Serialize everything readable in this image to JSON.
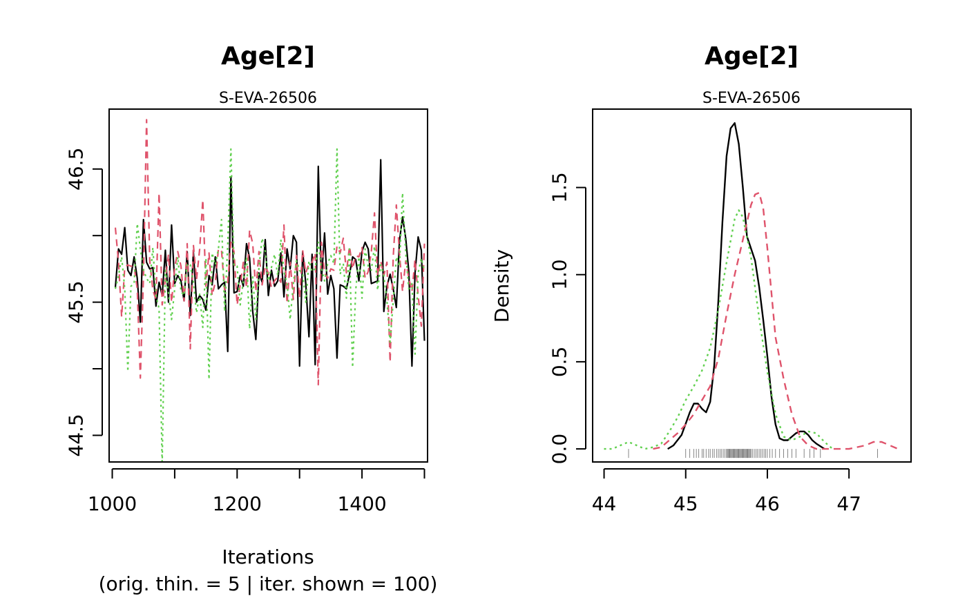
{
  "colors": {
    "chain1": "#000000",
    "chain2": "#DF536B",
    "chain3": "#61D04F",
    "frame": "#000000"
  },
  "chart_data": [
    {
      "type": "line",
      "title": "Age[2]",
      "subtitle": "S-EVA-26506",
      "xlabel": "Iterations",
      "xlabel_line2": "(orig. thin. = 5 | iter. shown = 100)",
      "ylabel": "",
      "xlim": [
        995,
        1505
      ],
      "ylim": [
        44.3,
        46.95
      ],
      "x_ticks": [
        1000,
        1100,
        1200,
        1300,
        1400,
        1500
      ],
      "x_tick_labels": [
        "1000",
        "",
        "1200",
        "",
        "1400",
        ""
      ],
      "y_ticks": [
        44.5,
        45.0,
        45.5,
        46.0,
        46.5
      ],
      "y_tick_labels": [
        "44.5",
        "",
        "45.5",
        "",
        "46.5"
      ],
      "x": [
        1005,
        1010,
        1015,
        1020,
        1025,
        1030,
        1035,
        1040,
        1045,
        1050,
        1055,
        1060,
        1065,
        1070,
        1075,
        1080,
        1085,
        1090,
        1095,
        1100,
        1105,
        1110,
        1115,
        1120,
        1125,
        1130,
        1135,
        1140,
        1145,
        1150,
        1155,
        1160,
        1165,
        1170,
        1175,
        1180,
        1185,
        1190,
        1195,
        1200,
        1205,
        1210,
        1215,
        1220,
        1225,
        1230,
        1235,
        1240,
        1245,
        1250,
        1255,
        1260,
        1265,
        1270,
        1275,
        1280,
        1285,
        1290,
        1295,
        1300,
        1305,
        1310,
        1315,
        1320,
        1325,
        1330,
        1335,
        1340,
        1345,
        1350,
        1355,
        1360,
        1365,
        1370,
        1375,
        1380,
        1385,
        1390,
        1395,
        1400,
        1405,
        1410,
        1415,
        1420,
        1425,
        1430,
        1435,
        1440,
        1445,
        1450,
        1455,
        1460,
        1465,
        1470,
        1475,
        1480,
        1485,
        1490,
        1495,
        1500
      ],
      "series": [
        {
          "values": [
            45.61,
            45.9,
            45.86,
            46.06,
            45.74,
            45.7,
            45.84,
            45.68,
            45.35,
            46.12,
            45.8,
            45.75,
            45.76,
            45.47,
            45.65,
            45.55,
            45.89,
            45.5,
            46.08,
            45.64,
            45.7,
            45.66,
            45.51,
            45.88,
            45.4,
            45.88,
            45.5,
            45.55,
            45.52,
            45.44,
            45.7,
            45.63,
            45.84,
            45.6,
            45.63,
            45.65,
            45.13,
            46.44,
            45.57,
            45.58,
            45.7,
            45.62,
            45.94,
            45.83,
            45.43,
            45.22,
            45.72,
            45.65,
            45.97,
            45.55,
            45.74,
            45.62,
            45.66,
            45.87,
            45.54,
            45.9,
            45.75,
            46.0,
            45.95,
            45.02,
            45.88,
            45.64,
            45.24,
            45.86,
            45.03,
            46.52,
            45.66,
            46.02,
            45.56,
            45.7,
            45.6,
            45.08,
            45.63,
            45.62,
            45.6,
            45.71,
            45.84,
            45.82,
            45.66,
            45.88,
            45.95,
            45.9,
            45.64,
            45.65,
            45.66,
            46.57,
            45.43,
            45.62,
            45.71,
            45.6,
            45.46,
            45.96,
            46.14,
            45.98,
            45.73,
            45.02,
            45.72,
            45.99,
            45.89,
            45.21
          ],
          "style": "solid",
          "color": "#000000"
        },
        {
          "values": [
            46.06,
            45.8,
            45.39,
            45.76,
            45.78,
            45.77,
            45.77,
            45.6,
            44.93,
            45.69,
            46.87,
            45.81,
            45.59,
            45.52,
            46.32,
            45.48,
            45.67,
            45.86,
            45.5,
            45.76,
            45.88,
            45.77,
            45.51,
            45.94,
            45.15,
            45.93,
            45.67,
            45.9,
            46.27,
            45.62,
            45.87,
            45.55,
            45.65,
            45.9,
            45.89,
            45.59,
            45.65,
            45.95,
            45.88,
            45.48,
            45.63,
            45.8,
            45.61,
            46.04,
            45.94,
            45.58,
            45.88,
            45.63,
            45.77,
            45.72,
            45.61,
            45.66,
            45.69,
            45.65,
            46.08,
            45.49,
            45.8,
            45.52,
            45.85,
            45.53,
            45.89,
            45.72,
            45.79,
            45.8,
            45.87,
            44.88,
            45.95,
            45.72,
            45.68,
            45.75,
            45.74,
            45.92,
            45.87,
            45.98,
            45.72,
            45.92,
            45.75,
            45.85,
            45.84,
            45.91,
            45.68,
            45.73,
            45.88,
            46.17,
            45.7,
            45.81,
            45.7,
            45.8,
            45.05,
            45.84,
            46.23,
            45.87,
            45.58,
            45.81,
            45.68,
            45.58,
            45.82,
            45.55,
            45.32,
            45.94
          ],
          "style": "dashed",
          "color": "#DF536B"
        },
        {
          "values": [
            45.6,
            45.7,
            45.84,
            45.6,
            44.98,
            45.62,
            45.64,
            46.09,
            45.9,
            45.74,
            45.68,
            45.64,
            45.91,
            45.55,
            45.45,
            44.28,
            45.74,
            45.57,
            45.37,
            45.6,
            45.84,
            45.58,
            45.55,
            45.79,
            45.78,
            45.65,
            45.42,
            45.56,
            45.31,
            45.83,
            44.92,
            45.87,
            45.78,
            45.9,
            46.12,
            45.43,
            45.93,
            46.65,
            45.77,
            45.77,
            45.48,
            45.66,
            45.84,
            45.3,
            45.69,
            45.37,
            45.76,
            45.98,
            45.88,
            45.66,
            45.76,
            45.86,
            45.7,
            45.97,
            45.73,
            45.64,
            45.37,
            45.64,
            45.81,
            45.74,
            45.71,
            45.5,
            45.81,
            45.73,
            45.75,
            45.95,
            45.75,
            45.66,
            45.79,
            45.85,
            45.79,
            46.65,
            45.71,
            45.79,
            45.53,
            45.9,
            45.01,
            45.59,
            45.84,
            45.53,
            45.9,
            45.77,
            45.74,
            45.92,
            45.59,
            45.78,
            45.7,
            45.51,
            45.2,
            45.51,
            45.84,
            45.77,
            46.32,
            45.87,
            45.6,
            45.64,
            45.11,
            45.72,
            45.83,
            45.73
          ],
          "style": "dotted",
          "color": "#61D04F"
        }
      ]
    },
    {
      "type": "line",
      "title": "Age[2]",
      "subtitle": "S-EVA-26506",
      "xlabel": "",
      "ylabel": "Density",
      "xlim": [
        43.86,
        47.76
      ],
      "ylim": [
        -0.075,
        1.95
      ],
      "x_ticks": [
        44,
        45,
        46,
        47
      ],
      "x_tick_labels": [
        "44",
        "45",
        "46",
        "47"
      ],
      "y_ticks": [
        0.0,
        0.5,
        1.0,
        1.5
      ],
      "y_tick_labels": [
        "0.0",
        "0.5",
        "1.0",
        "1.5"
      ],
      "series": [
        {
          "style": "solid",
          "color": "#000000",
          "x": [
            44.78,
            44.85,
            44.95,
            45.05,
            45.1,
            45.15,
            45.2,
            45.25,
            45.3,
            45.35,
            45.4,
            45.45,
            45.5,
            45.55,
            45.6,
            45.65,
            45.7,
            45.75,
            45.8,
            45.85,
            45.9,
            45.95,
            46.0,
            46.05,
            46.1,
            46.15,
            46.2,
            46.25,
            46.3,
            46.35,
            46.4,
            46.45,
            46.5,
            46.55,
            46.6,
            46.7
          ],
          "y": [
            0.0,
            0.02,
            0.08,
            0.21,
            0.26,
            0.26,
            0.23,
            0.21,
            0.27,
            0.48,
            0.85,
            1.3,
            1.68,
            1.84,
            1.87,
            1.75,
            1.5,
            1.22,
            1.15,
            1.08,
            0.93,
            0.74,
            0.53,
            0.3,
            0.14,
            0.06,
            0.05,
            0.05,
            0.07,
            0.09,
            0.1,
            0.1,
            0.08,
            0.05,
            0.03,
            0.0
          ]
        },
        {
          "style": "dashed",
          "color": "#DF536B",
          "x": [
            44.6,
            44.7,
            44.8,
            44.9,
            45.0,
            45.1,
            45.2,
            45.3,
            45.4,
            45.5,
            45.6,
            45.7,
            45.8,
            45.85,
            45.9,
            45.95,
            46.0,
            46.1,
            46.2,
            46.3,
            46.4,
            46.5,
            46.6,
            46.8,
            47.0,
            47.2,
            47.3,
            47.4,
            47.5,
            47.6
          ],
          "y": [
            0.0,
            0.01,
            0.05,
            0.09,
            0.14,
            0.2,
            0.28,
            0.36,
            0.52,
            0.77,
            1.0,
            1.2,
            1.4,
            1.46,
            1.47,
            1.38,
            1.15,
            0.64,
            0.4,
            0.2,
            0.07,
            0.02,
            0.0,
            0.0,
            0.0,
            0.02,
            0.04,
            0.04,
            0.02,
            0.0
          ]
        },
        {
          "style": "dotted",
          "color": "#61D04F",
          "x": [
            44.0,
            44.1,
            44.2,
            44.3,
            44.4,
            44.5,
            44.6,
            44.7,
            44.8,
            44.9,
            45.0,
            45.1,
            45.2,
            45.3,
            45.4,
            45.5,
            45.6,
            45.65,
            45.7,
            45.8,
            45.9,
            46.0,
            46.1,
            46.2,
            46.3,
            46.4,
            46.5,
            46.6,
            46.7,
            46.8
          ],
          "y": [
            0.0,
            0.0,
            0.02,
            0.04,
            0.02,
            0.0,
            0.01,
            0.03,
            0.1,
            0.18,
            0.28,
            0.36,
            0.45,
            0.58,
            0.8,
            1.07,
            1.32,
            1.37,
            1.33,
            1.1,
            0.75,
            0.44,
            0.2,
            0.07,
            0.05,
            0.07,
            0.1,
            0.09,
            0.04,
            0.0
          ]
        }
      ],
      "rug": [
        44.3,
        45.0,
        45.05,
        45.1,
        45.13,
        45.16,
        45.2,
        45.22,
        45.25,
        45.28,
        45.3,
        45.33,
        45.35,
        45.38,
        45.4,
        45.42,
        45.44,
        45.46,
        45.48,
        45.5,
        45.51,
        45.52,
        45.53,
        45.54,
        45.55,
        45.56,
        45.57,
        45.58,
        45.59,
        45.6,
        45.61,
        45.62,
        45.63,
        45.64,
        45.65,
        45.66,
        45.67,
        45.68,
        45.69,
        45.7,
        45.71,
        45.72,
        45.73,
        45.74,
        45.75,
        45.76,
        45.77,
        45.78,
        45.79,
        45.8,
        45.82,
        45.84,
        45.86,
        45.88,
        45.9,
        45.92,
        45.94,
        45.96,
        45.98,
        46.0,
        46.03,
        46.06,
        46.1,
        46.15,
        46.2,
        46.25,
        46.3,
        46.35,
        46.45,
        46.52,
        46.57,
        46.65,
        47.35
      ]
    }
  ]
}
